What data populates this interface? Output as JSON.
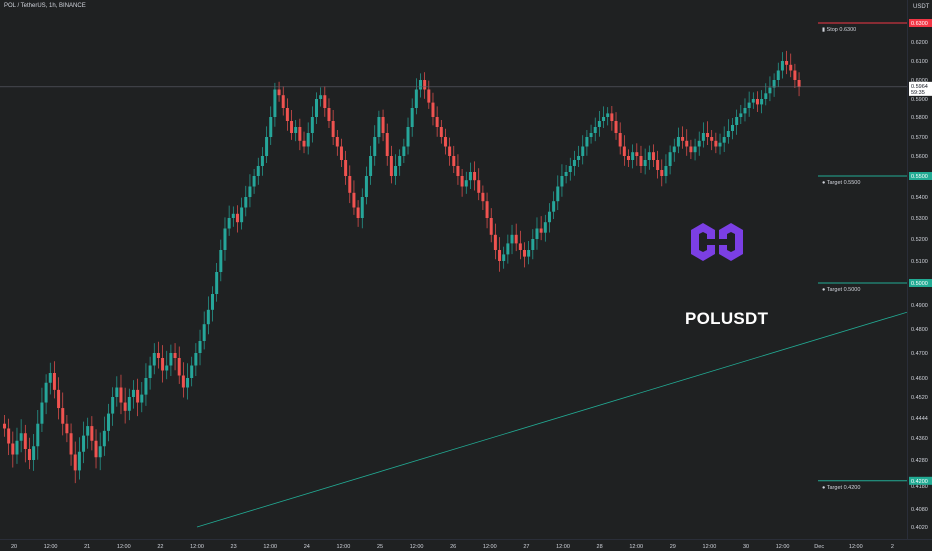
{
  "header": {
    "symbol": "POL / TetherUS, 1h, BINANCE",
    "currency": "USDT"
  },
  "brand": {
    "ticker": "POLUSDT"
  },
  "colors": {
    "background": "#1f2122",
    "up": "#26a69a",
    "down": "#ef5350",
    "axis_text": "#d1d4dc",
    "stop": "#f23645",
    "target": "#22ab94",
    "logo": "#7b3fe4"
  },
  "chart_data": {
    "type": "candlestick",
    "timeframe": "1h",
    "x_ticks": [
      "20",
      "12:00",
      "21",
      "12:00",
      "22",
      "12:00",
      "23",
      "12:00",
      "24",
      "12:00",
      "25",
      "12:00",
      "26",
      "12:00",
      "27",
      "12:00",
      "28",
      "12:00",
      "29",
      "12:00",
      "30",
      "12:00",
      "Dec",
      "12:00",
      "2"
    ],
    "y_ticks": [
      "0.6200",
      "0.6100",
      "0.6000",
      "0.5900",
      "0.5800",
      "0.5700",
      "0.5600",
      "0.5500",
      "0.5400",
      "0.5300",
      "0.5200",
      "0.5100",
      "0.5000",
      "0.4900",
      "0.4800",
      "0.4700",
      "0.4600",
      "0.4520",
      "0.4444",
      "0.4360",
      "0.4280",
      "0.4180",
      "0.4080",
      "0.4020"
    ],
    "last_price": "0.5964",
    "countdown": "59:35",
    "levels": [
      {
        "label": "Stop 0.6300",
        "axis_label": "0.6300",
        "kind": "stop",
        "value": 0.63
      },
      {
        "label": "Target 0.5500",
        "axis_label": "0.5500",
        "kind": "target",
        "value": 0.55
      },
      {
        "label": "Target 0.5000",
        "axis_label": "0.5000",
        "kind": "target",
        "value": 0.5
      },
      {
        "label": "Target 0.4200",
        "axis_label": "0.4200",
        "kind": "target",
        "value": 0.42
      }
    ],
    "trendline": {
      "start": {
        "time": "22 12:00",
        "price": 0.398
      },
      "end": {
        "time": "2",
        "price": 0.487
      }
    },
    "candles": {
      "closes": [
        0.44,
        0.434,
        0.43,
        0.435,
        0.438,
        0.432,
        0.428,
        0.433,
        0.442,
        0.45,
        0.458,
        0.462,
        0.455,
        0.448,
        0.442,
        0.438,
        0.43,
        0.424,
        0.431,
        0.437,
        0.441,
        0.435,
        0.429,
        0.433,
        0.439,
        0.446,
        0.452,
        0.456,
        0.45,
        0.447,
        0.452,
        0.455,
        0.45,
        0.453,
        0.46,
        0.465,
        0.47,
        0.468,
        0.463,
        0.465,
        0.47,
        0.468,
        0.461,
        0.456,
        0.46,
        0.465,
        0.47,
        0.475,
        0.482,
        0.488,
        0.495,
        0.505,
        0.515,
        0.525,
        0.53,
        0.532,
        0.528,
        0.535,
        0.54,
        0.545,
        0.55,
        0.555,
        0.56,
        0.57,
        0.58,
        0.595,
        0.592,
        0.585,
        0.578,
        0.572,
        0.575,
        0.568,
        0.565,
        0.572,
        0.58,
        0.59,
        0.592,
        0.585,
        0.578,
        0.57,
        0.565,
        0.558,
        0.55,
        0.542,
        0.535,
        0.53,
        0.54,
        0.55,
        0.56,
        0.57,
        0.58,
        0.572,
        0.56,
        0.55,
        0.555,
        0.56,
        0.565,
        0.575,
        0.585,
        0.595,
        0.6,
        0.595,
        0.588,
        0.58,
        0.575,
        0.57,
        0.565,
        0.56,
        0.555,
        0.55,
        0.545,
        0.548,
        0.552,
        0.548,
        0.542,
        0.538,
        0.53,
        0.522,
        0.515,
        0.51,
        0.513,
        0.518,
        0.522,
        0.518,
        0.515,
        0.512,
        0.515,
        0.52,
        0.525,
        0.523,
        0.528,
        0.533,
        0.538,
        0.545,
        0.55,
        0.552,
        0.555,
        0.558,
        0.56,
        0.565,
        0.57,
        0.572,
        0.575,
        0.578,
        0.58,
        0.582,
        0.578,
        0.572,
        0.565,
        0.56,
        0.558,
        0.562,
        0.56,
        0.555,
        0.558,
        0.562,
        0.558,
        0.553,
        0.55,
        0.555,
        0.562,
        0.565,
        0.57,
        0.568,
        0.565,
        0.562,
        0.565,
        0.568,
        0.572,
        0.57,
        0.568,
        0.565,
        0.567,
        0.57,
        0.573,
        0.576,
        0.58,
        0.582,
        0.585,
        0.588,
        0.59,
        0.587,
        0.59,
        0.593,
        0.596,
        0.6,
        0.605,
        0.61,
        0.608,
        0.605,
        0.6,
        0.5964
      ]
    }
  }
}
